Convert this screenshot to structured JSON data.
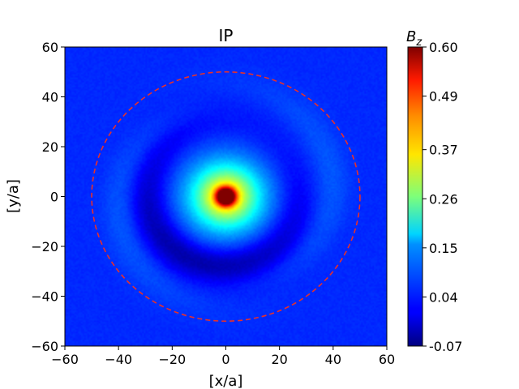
{
  "chart_data": {
    "type": "heatmap",
    "title": "IP",
    "xlabel": "[x/a]",
    "ylabel": "[y/a]",
    "xlim": [
      -60,
      60
    ],
    "ylim": [
      -60,
      60
    ],
    "xticks": [
      -60,
      -40,
      -20,
      0,
      20,
      40,
      60
    ],
    "yticks": [
      -60,
      -40,
      -20,
      0,
      20,
      40,
      60
    ],
    "xtick_labels": [
      "−60",
      "−40",
      "−20",
      "0",
      "20",
      "40",
      "60"
    ],
    "ytick_labels": [
      "−60",
      "−40",
      "−20",
      "0",
      "20",
      "40",
      "60"
    ],
    "colormap": "jet",
    "colorbar": {
      "label": "B_z",
      "label_main": "B",
      "label_sub": "z",
      "range": [
        -0.07,
        0.6
      ],
      "ticks": [
        -0.07,
        0.04,
        0.15,
        0.26,
        0.37,
        0.49,
        0.6
      ],
      "tick_labels": [
        "-0.07",
        "0.04",
        "0.15",
        "0.26",
        "0.37",
        "0.49",
        "0.60"
      ]
    },
    "features": {
      "background_value": 0.04,
      "peak": {
        "x": 0,
        "y": 0,
        "value": 0.6
      },
      "core_radius": 13,
      "dark_spiral_ring_value": -0.02,
      "dashed_circle": {
        "center": [
          0,
          0
        ],
        "radius": 50,
        "color": "#e8302a"
      }
    },
    "grid": false
  }
}
